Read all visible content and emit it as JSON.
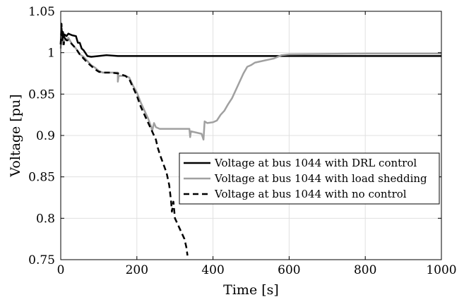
{
  "chart_data": {
    "type": "line",
    "xlabel": "Time [s]",
    "ylabel": "Voltage [pu]",
    "xlim": [
      0,
      1000
    ],
    "ylim": [
      0.75,
      1.05
    ],
    "xticks": [
      0,
      200,
      400,
      600,
      800,
      1000
    ],
    "yticks": [
      0.75,
      0.8,
      0.85,
      0.9,
      0.95,
      1,
      1.05
    ],
    "xtick_labels": [
      "0",
      "200",
      "400",
      "600",
      "800",
      "1000"
    ],
    "ytick_labels": [
      "0.75",
      "0.8",
      "0.85",
      "0.9",
      "0.95",
      "1",
      "1.05"
    ],
    "grid": true,
    "legend_position": "lower-right",
    "series": [
      {
        "name": "Voltage at bus 1044 with DRL control",
        "color": "#000000",
        "dash": "solid",
        "points": [
          [
            0,
            1.01
          ],
          [
            2,
            1.03
          ],
          [
            4,
            1.02
          ],
          [
            6,
            1.025
          ],
          [
            8,
            1.015
          ],
          [
            10,
            1.022
          ],
          [
            15,
            1.02
          ],
          [
            20,
            1.023
          ],
          [
            30,
            1.021
          ],
          [
            40,
            1.02
          ],
          [
            45,
            1.012
          ],
          [
            50,
            1.012
          ],
          [
            55,
            1.005
          ],
          [
            60,
            1.003
          ],
          [
            70,
            0.996
          ],
          [
            80,
            0.995
          ],
          [
            100,
            0.996
          ],
          [
            120,
            0.997
          ],
          [
            150,
            0.996
          ],
          [
            200,
            0.996
          ],
          [
            300,
            0.996
          ],
          [
            400,
            0.996
          ],
          [
            500,
            0.996
          ],
          [
            600,
            0.996
          ],
          [
            800,
            0.996
          ],
          [
            1000,
            0.996
          ]
        ]
      },
      {
        "name": "Voltage at bus 1044 with load shedding",
        "color": "#a0a0a0",
        "dash": "solid",
        "points": [
          [
            0,
            1.005
          ],
          [
            2,
            1.025
          ],
          [
            4,
            1.01
          ],
          [
            6,
            1.022
          ],
          [
            8,
            1.01
          ],
          [
            10,
            1.018
          ],
          [
            15,
            1.015
          ],
          [
            20,
            1.018
          ],
          [
            30,
            1.01
          ],
          [
            40,
            1.005
          ],
          [
            50,
            0.998
          ],
          [
            60,
            0.995
          ],
          [
            70,
            0.99
          ],
          [
            80,
            0.985
          ],
          [
            90,
            0.982
          ],
          [
            100,
            0.978
          ],
          [
            110,
            0.976
          ],
          [
            130,
            0.976
          ],
          [
            150,
            0.976
          ],
          [
            150,
            0.965
          ],
          [
            152,
            0.972
          ],
          [
            170,
            0.972
          ],
          [
            180,
            0.97
          ],
          [
            190,
            0.96
          ],
          [
            200,
            0.952
          ],
          [
            210,
            0.94
          ],
          [
            220,
            0.93
          ],
          [
            230,
            0.92
          ],
          [
            238,
            0.91
          ],
          [
            240,
            0.905
          ],
          [
            245,
            0.915
          ],
          [
            250,
            0.91
          ],
          [
            260,
            0.908
          ],
          [
            300,
            0.908
          ],
          [
            338,
            0.908
          ],
          [
            340,
            0.898
          ],
          [
            342,
            0.905
          ],
          [
            370,
            0.902
          ],
          [
            375,
            0.895
          ],
          [
            378,
            0.917
          ],
          [
            385,
            0.915
          ],
          [
            400,
            0.916
          ],
          [
            410,
            0.918
          ],
          [
            420,
            0.925
          ],
          [
            430,
            0.93
          ],
          [
            440,
            0.938
          ],
          [
            450,
            0.945
          ],
          [
            460,
            0.955
          ],
          [
            470,
            0.965
          ],
          [
            480,
            0.975
          ],
          [
            490,
            0.983
          ],
          [
            500,
            0.985
          ],
          [
            510,
            0.988
          ],
          [
            530,
            0.99
          ],
          [
            560,
            0.993
          ],
          [
            580,
            0.997
          ],
          [
            600,
            0.998
          ],
          [
            800,
            0.999
          ],
          [
            1000,
            0.999
          ]
        ]
      },
      {
        "name": "Voltage at bus 1044 with no control",
        "color": "#000000",
        "dash": "dashed",
        "points": [
          [
            0,
            1.01
          ],
          [
            2,
            1.035
          ],
          [
            4,
            1.015
          ],
          [
            6,
            1.025
          ],
          [
            8,
            1.01
          ],
          [
            10,
            1.018
          ],
          [
            15,
            1.015
          ],
          [
            20,
            1.015
          ],
          [
            30,
            1.01
          ],
          [
            40,
            1.005
          ],
          [
            50,
            0.998
          ],
          [
            60,
            0.993
          ],
          [
            70,
            0.988
          ],
          [
            80,
            0.984
          ],
          [
            90,
            0.98
          ],
          [
            100,
            0.977
          ],
          [
            110,
            0.976
          ],
          [
            130,
            0.976
          ],
          [
            150,
            0.975
          ],
          [
            170,
            0.972
          ],
          [
            180,
            0.968
          ],
          [
            190,
            0.958
          ],
          [
            200,
            0.948
          ],
          [
            210,
            0.935
          ],
          [
            220,
            0.925
          ],
          [
            230,
            0.915
          ],
          [
            240,
            0.905
          ],
          [
            250,
            0.895
          ],
          [
            255,
            0.885
          ],
          [
            262,
            0.875
          ],
          [
            270,
            0.865
          ],
          [
            278,
            0.855
          ],
          [
            285,
            0.84
          ],
          [
            290,
            0.82
          ],
          [
            292,
            0.808
          ],
          [
            296,
            0.82
          ],
          [
            300,
            0.8
          ],
          [
            305,
            0.795
          ],
          [
            310,
            0.79
          ],
          [
            315,
            0.785
          ],
          [
            320,
            0.78
          ],
          [
            325,
            0.775
          ],
          [
            330,
            0.765
          ],
          [
            333,
            0.755
          ]
        ]
      }
    ]
  }
}
